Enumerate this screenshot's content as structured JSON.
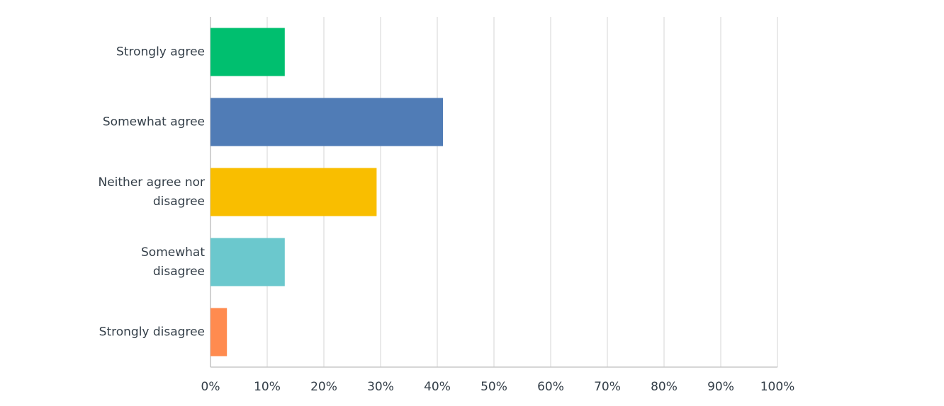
{
  "chart_data": {
    "type": "bar",
    "orientation": "horizontal",
    "categories": [
      "Strongly agree",
      "Somewhat agree",
      "Neither agree nor disagree",
      "Somewhat disagree",
      "Strongly disagree"
    ],
    "values": [
      13.1,
      41.0,
      29.3,
      13.1,
      2.9
    ],
    "colors": [
      "#00bf6f",
      "#507cb6",
      "#f9be00",
      "#6bc8cd",
      "#ff8b4f"
    ],
    "xlim": [
      0,
      100
    ],
    "xticks": [
      {
        "value": 0,
        "label": "0%"
      },
      {
        "value": 10,
        "label": "10%"
      },
      {
        "value": 20,
        "label": "20%"
      },
      {
        "value": 30,
        "label": "30%"
      },
      {
        "value": 40,
        "label": "40%"
      },
      {
        "value": 50,
        "label": "50%"
      },
      {
        "value": 60,
        "label": "60%"
      },
      {
        "value": 70,
        "label": "70%"
      },
      {
        "value": 80,
        "label": "80%"
      },
      {
        "value": 90,
        "label": "90%"
      },
      {
        "value": 100,
        "label": "100%"
      }
    ],
    "grid": true
  }
}
